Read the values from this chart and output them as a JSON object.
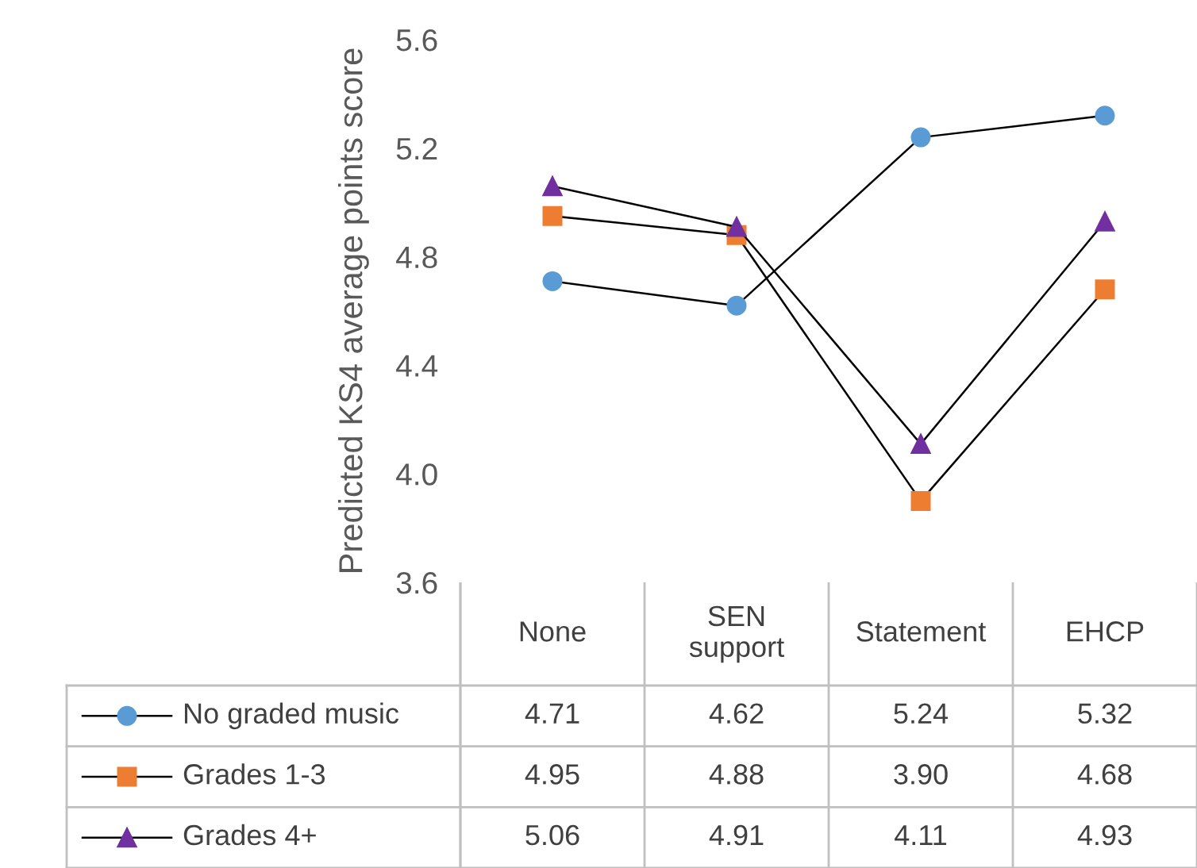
{
  "chart_data": {
    "type": "line",
    "ylabel": "Predicted KS4 average points score",
    "categories": [
      "None",
      "SEN\nsupport",
      "Statement",
      "EHCP"
    ],
    "series": [
      {
        "name": "No graded music",
        "color": "#5b9bd5",
        "marker": "circle",
        "values": [
          4.71,
          4.62,
          5.24,
          5.32
        ],
        "value_labels": [
          "4.71",
          "4.62",
          "5.24",
          "5.32"
        ]
      },
      {
        "name": "Grades 1-3",
        "color": "#ed7d31",
        "marker": "square",
        "values": [
          4.95,
          4.88,
          3.9,
          4.68
        ],
        "value_labels": [
          "4.95",
          "4.88",
          "3.90",
          "4.68"
        ]
      },
      {
        "name": "Grades 4+",
        "color": "#7030a0",
        "marker": "triangle",
        "values": [
          5.06,
          4.91,
          4.11,
          4.93
        ],
        "value_labels": [
          "5.06",
          "4.91",
          "4.11",
          "4.93"
        ]
      }
    ],
    "ylim": [
      3.6,
      5.6
    ],
    "yticks": [
      {
        "value": 3.6,
        "label": "3.6"
      },
      {
        "value": 4.0,
        "label": "4.0"
      },
      {
        "value": 4.4,
        "label": "4.4"
      },
      {
        "value": 4.8,
        "label": "4.8"
      },
      {
        "value": 5.2,
        "label": "5.2"
      },
      {
        "value": 5.6,
        "label": "5.6"
      }
    ],
    "grid": false,
    "legend": "bottom left",
    "line_style": "solid"
  }
}
